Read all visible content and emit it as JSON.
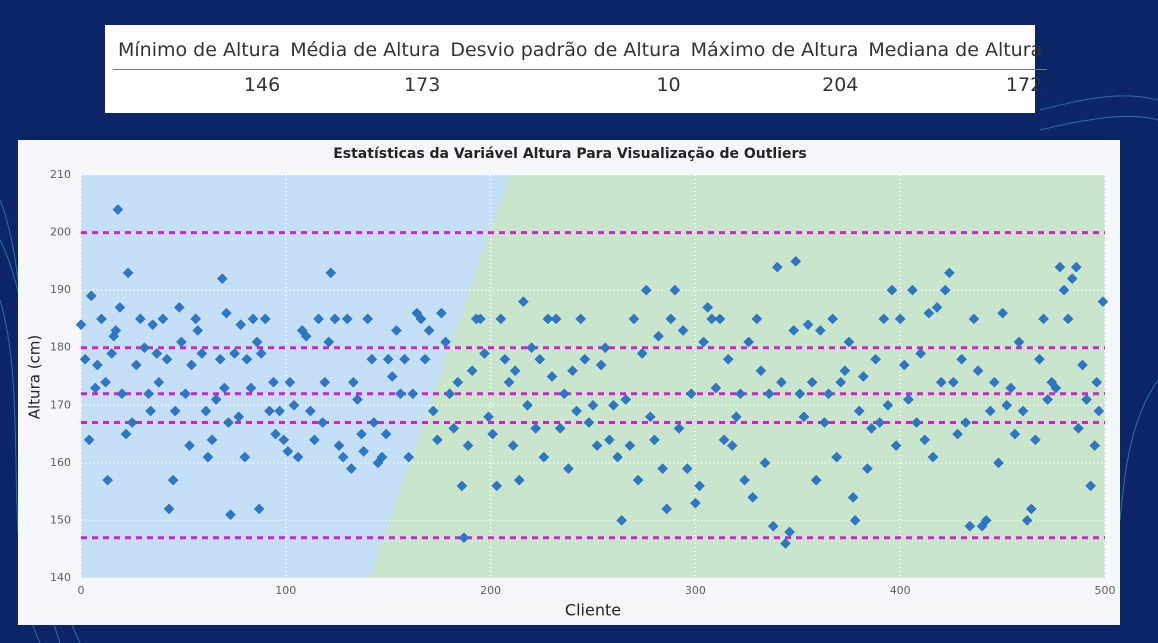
{
  "table": {
    "headers": [
      "Mínimo de Altura",
      "Média de Altura",
      "Desvio padrão de Altura",
      "Máximo de Altura",
      "Mediana de Altura"
    ],
    "rows": [
      [
        146,
        173,
        10,
        204,
        172
      ]
    ]
  },
  "chart_data": {
    "type": "scatter",
    "title": "Estatísticas da Variável Altura Para Visualização de Outliers",
    "x_label": "Cliente",
    "y_label": "Altura (cm)",
    "color": "#2b78c9",
    "hline_color": "#d81fd0",
    "xlim": [
      0,
      500
    ],
    "ylim": [
      140,
      210
    ],
    "xticks": [
      0,
      100,
      200,
      300,
      400,
      500
    ],
    "yticks": [
      140,
      150,
      160,
      170,
      180,
      190,
      200,
      210
    ],
    "grid": true,
    "hlines": [
      147,
      167,
      172,
      180,
      200
    ],
    "x": [
      0,
      2,
      4,
      5,
      7,
      8,
      10,
      12,
      13,
      15,
      16,
      17,
      18,
      19,
      20,
      22,
      23,
      25,
      27,
      29,
      31,
      33,
      34,
      35,
      37,
      38,
      40,
      42,
      43,
      45,
      46,
      48,
      49,
      51,
      53,
      54,
      56,
      57,
      59,
      61,
      62,
      64,
      66,
      68,
      69,
      70,
      71,
      72,
      73,
      75,
      77,
      78,
      80,
      81,
      83,
      84,
      86,
      87,
      88,
      90,
      92,
      94,
      95,
      97,
      99,
      101,
      102,
      104,
      106,
      108,
      110,
      112,
      114,
      116,
      118,
      119,
      121,
      122,
      124,
      126,
      128,
      130,
      132,
      133,
      135,
      137,
      138,
      140,
      142,
      143,
      145,
      147,
      149,
      150,
      152,
      154,
      156,
      158,
      160,
      162,
      164,
      166,
      168,
      170,
      172,
      174,
      176,
      178,
      180,
      182,
      184,
      186,
      187,
      189,
      191,
      193,
      195,
      197,
      199,
      201,
      203,
      205,
      207,
      209,
      211,
      212,
      214,
      216,
      218,
      220,
      222,
      224,
      226,
      228,
      230,
      232,
      234,
      236,
      238,
      240,
      242,
      244,
      246,
      248,
      250,
      252,
      254,
      256,
      258,
      260,
      262,
      264,
      266,
      268,
      270,
      272,
      274,
      276,
      278,
      280,
      282,
      284,
      286,
      288,
      290,
      292,
      294,
      296,
      298,
      300,
      302,
      304,
      306,
      308,
      310,
      312,
      314,
      316,
      318,
      320,
      322,
      324,
      326,
      328,
      330,
      332,
      334,
      336,
      338,
      340,
      342,
      344,
      346,
      348,
      349,
      351,
      353,
      355,
      357,
      359,
      361,
      363,
      365,
      367,
      369,
      371,
      373,
      375,
      377,
      378,
      380,
      382,
      384,
      386,
      388,
      390,
      392,
      394,
      396,
      398,
      400,
      402,
      404,
      406,
      408,
      410,
      412,
      414,
      416,
      418,
      420,
      422,
      424,
      426,
      428,
      430,
      432,
      434,
      436,
      438,
      440,
      442,
      444,
      446,
      448,
      450,
      452,
      454,
      456,
      458,
      460,
      462,
      464,
      466,
      468,
      470,
      472,
      474,
      476,
      478,
      480,
      482,
      484,
      486,
      487,
      489,
      491,
      493,
      495,
      496,
      497,
      499
    ],
    "values": [
      184,
      178,
      164,
      189,
      173,
      177,
      185,
      174,
      157,
      179,
      182,
      183,
      204,
      187,
      172,
      165,
      193,
      167,
      177,
      185,
      180,
      172,
      169,
      184,
      179,
      174,
      185,
      178,
      152,
      157,
      169,
      187,
      181,
      172,
      163,
      177,
      185,
      183,
      179,
      169,
      161,
      164,
      171,
      178,
      192,
      173,
      186,
      167,
      151,
      179,
      168,
      184,
      161,
      178,
      173,
      185,
      181,
      152,
      179,
      185,
      169,
      174,
      165,
      169,
      164,
      162,
      174,
      170,
      161,
      183,
      182,
      169,
      164,
      185,
      167,
      174,
      181,
      193,
      185,
      163,
      161,
      185,
      159,
      174,
      171,
      165,
      162,
      185,
      178,
      167,
      160,
      161,
      165,
      178,
      175,
      183,
      172,
      178,
      161,
      172,
      186,
      185,
      178,
      183,
      169,
      164,
      186,
      181,
      172,
      166,
      174,
      156,
      147,
      163,
      176,
      185,
      185,
      179,
      168,
      165,
      156,
      185,
      178,
      174,
      163,
      176,
      157,
      188,
      170,
      180,
      166,
      178,
      161,
      185,
      175,
      185,
      166,
      172,
      159,
      176,
      169,
      185,
      178,
      167,
      170,
      163,
      177,
      180,
      164,
      170,
      161,
      150,
      171,
      163,
      185,
      157,
      179,
      190,
      168,
      164,
      182,
      159,
      152,
      185,
      190,
      166,
      183,
      159,
      172,
      153,
      156,
      181,
      187,
      185,
      173,
      185,
      164,
      178,
      163,
      168,
      172,
      157,
      181,
      154,
      185,
      176,
      160,
      172,
      149,
      194,
      174,
      146,
      148,
      183,
      195,
      172,
      168,
      184,
      174,
      157,
      183,
      167,
      172,
      185,
      161,
      174,
      176,
      181,
      154,
      150,
      169,
      175,
      159,
      166,
      178,
      167,
      185,
      170,
      190,
      163,
      185,
      177,
      171,
      190,
      167,
      179,
      164,
      186,
      161,
      187,
      174,
      190,
      193,
      174,
      165,
      178,
      167,
      149,
      185,
      176,
      149,
      150,
      169,
      174,
      160,
      186,
      170,
      173,
      165,
      181,
      169,
      150,
      152,
      164,
      178,
      185,
      171,
      174,
      173,
      194,
      190,
      185,
      192,
      194,
      166,
      177,
      171,
      156,
      163,
      174,
      169,
      188
    ]
  }
}
